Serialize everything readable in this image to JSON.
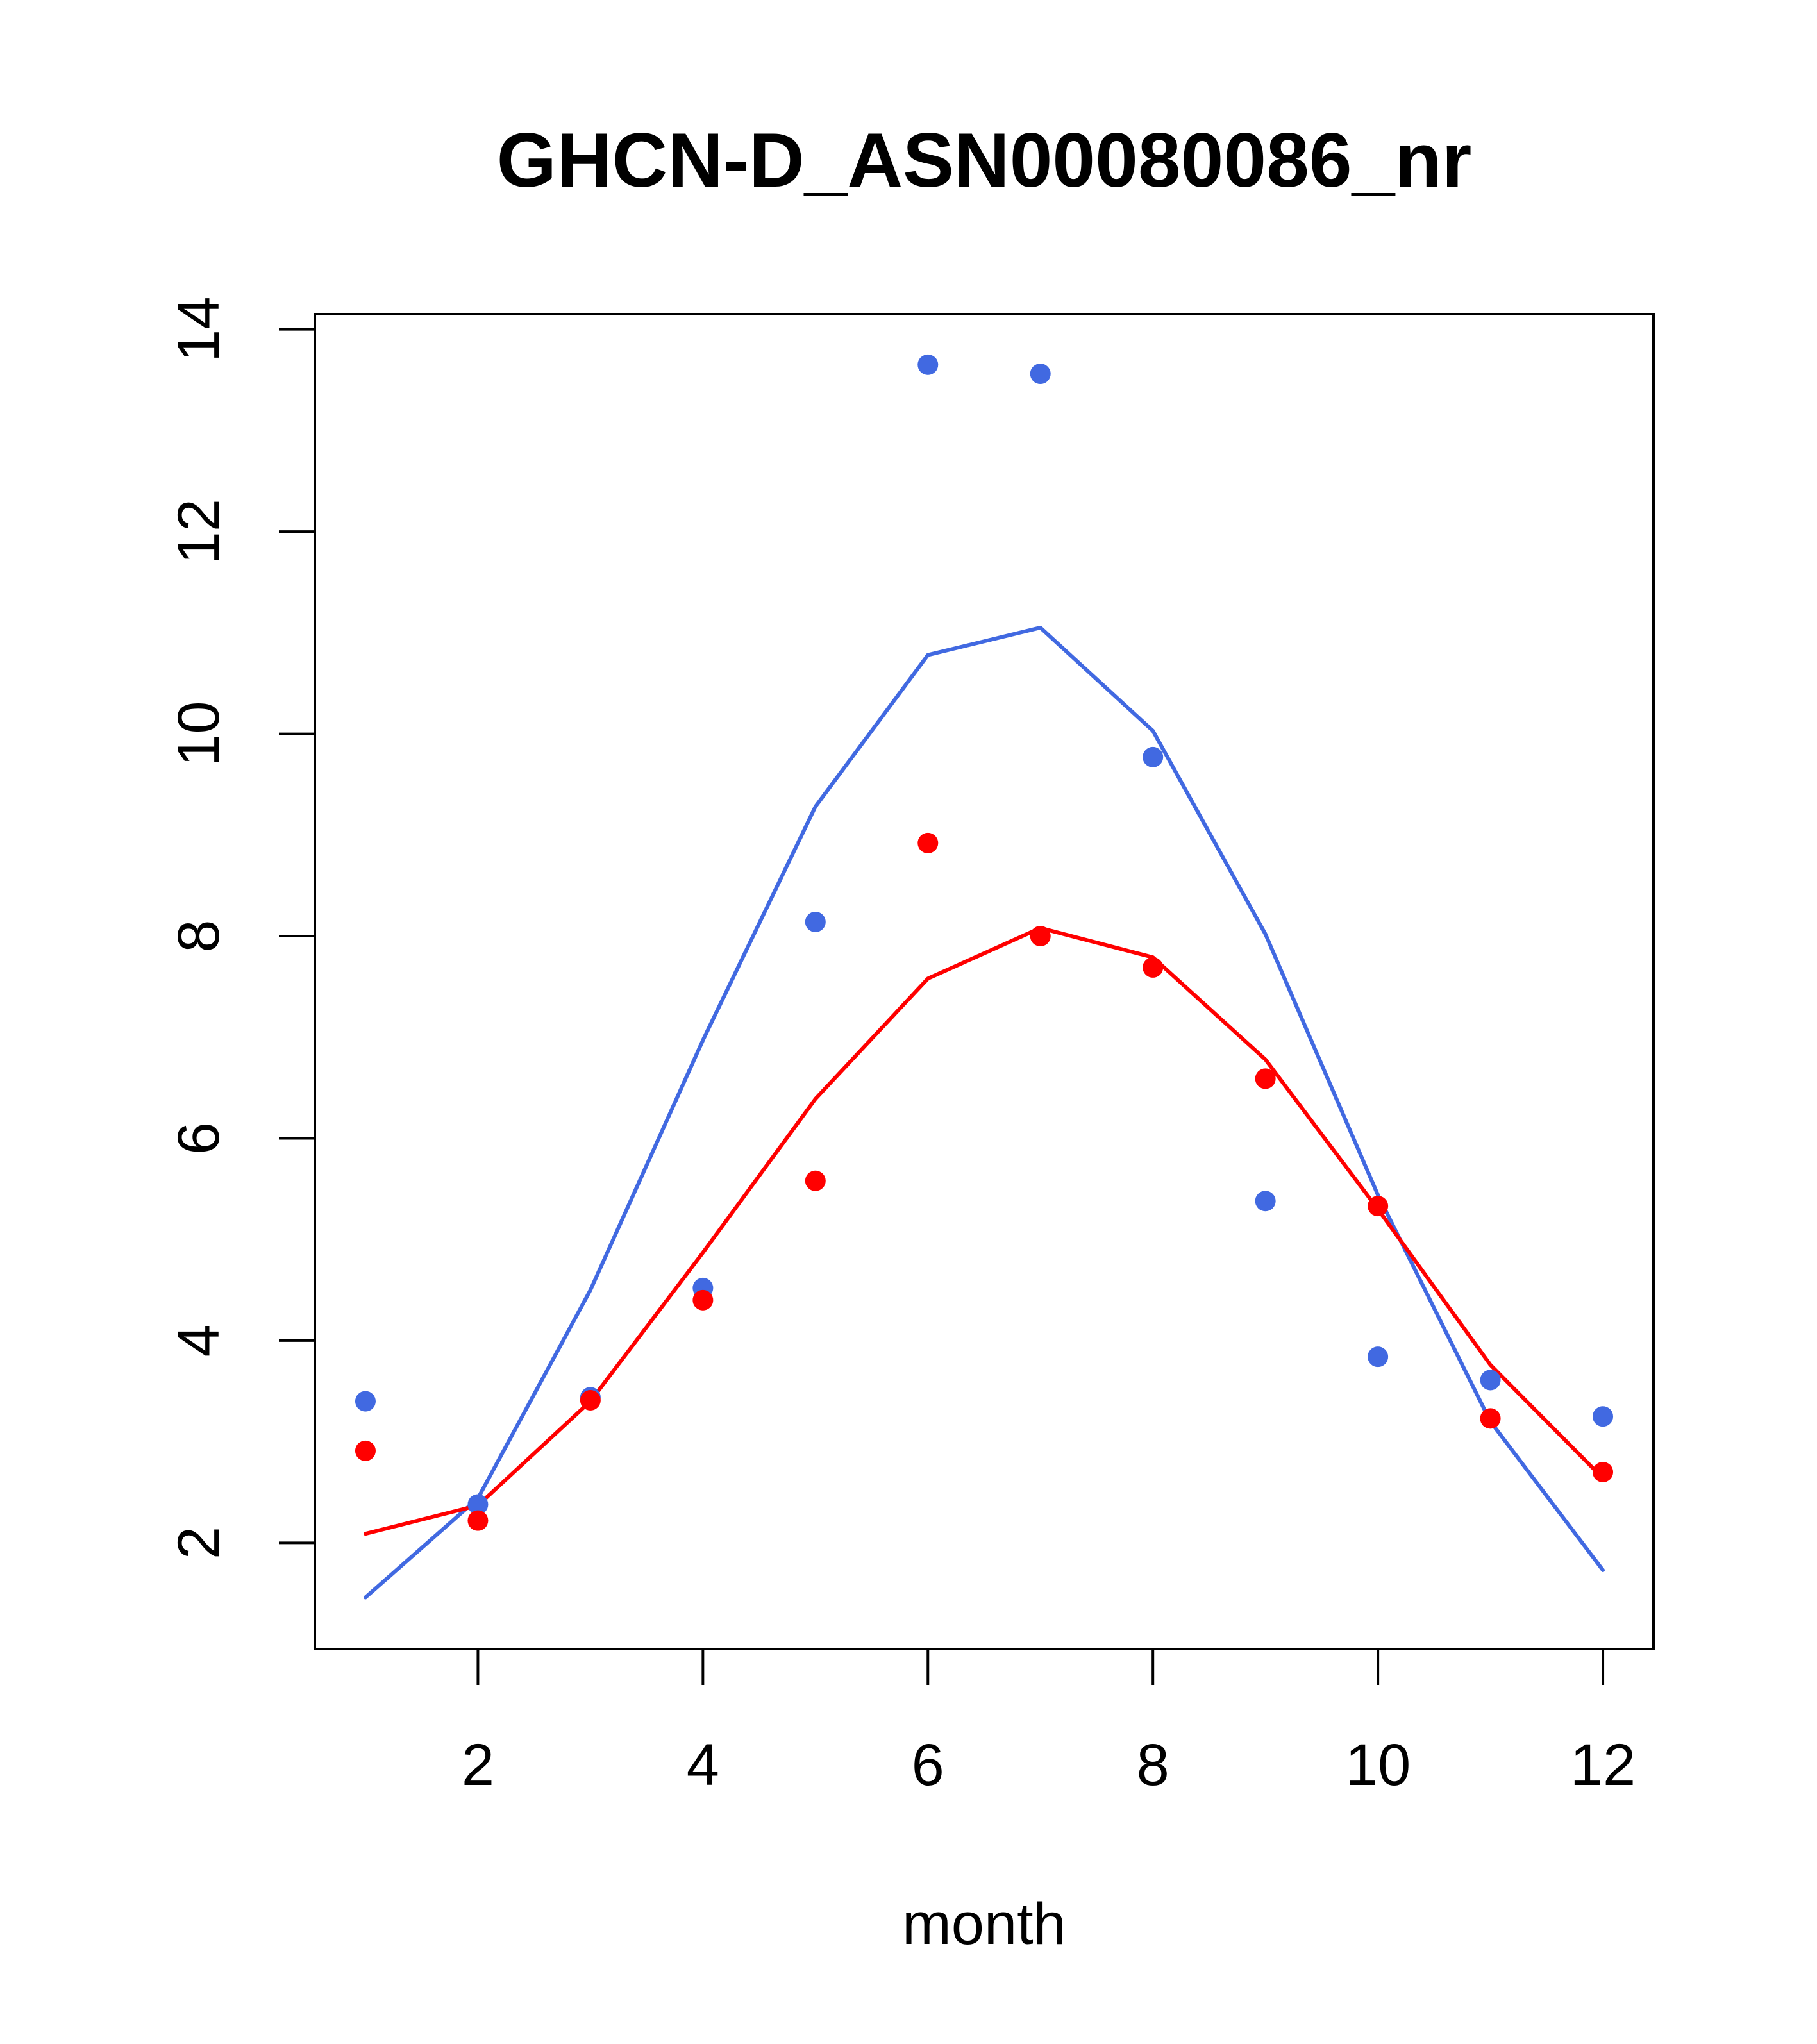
{
  "chart_data": {
    "type": "scatter",
    "title": "GHCN-D_ASN00080086_nr",
    "xlabel": "month",
    "ylabel": "",
    "xlim": [
      0.55,
      12.45
    ],
    "ylim": [
      0.95,
      14.15
    ],
    "xticks": [
      2,
      4,
      6,
      8,
      10,
      12
    ],
    "yticks": [
      2,
      4,
      6,
      8,
      10,
      12,
      14
    ],
    "grid": false,
    "colors": {
      "blue": "#4169E1",
      "red": "#FF0000",
      "axis": "#000000"
    },
    "series": [
      {
        "color": "blue",
        "points": [
          [
            1,
            3.4
          ],
          [
            2,
            2.38
          ],
          [
            3,
            3.44
          ],
          [
            4,
            4.52
          ],
          [
            5,
            8.14
          ],
          [
            6,
            13.65
          ],
          [
            7,
            13.56
          ],
          [
            8,
            9.77
          ],
          [
            9,
            5.38
          ],
          [
            10,
            3.84
          ],
          [
            11,
            3.61
          ],
          [
            12,
            3.25
          ]
        ],
        "line": [
          [
            1,
            1.46
          ],
          [
            2,
            2.44
          ],
          [
            3,
            4.5
          ],
          [
            4,
            6.97
          ],
          [
            5,
            9.28
          ],
          [
            6,
            10.78
          ],
          [
            7,
            11.05
          ],
          [
            8,
            10.03
          ],
          [
            9,
            8.02
          ],
          [
            10,
            5.44
          ],
          [
            11,
            3.2
          ],
          [
            12,
            1.73
          ]
        ]
      },
      {
        "color": "red",
        "points": [
          [
            1,
            2.91
          ],
          [
            2,
            2.22
          ],
          [
            3,
            3.41
          ],
          [
            4,
            4.4
          ],
          [
            5,
            5.58
          ],
          [
            6,
            8.92
          ],
          [
            7,
            8.0
          ],
          [
            8,
            7.69
          ],
          [
            9,
            6.59
          ],
          [
            10,
            5.33
          ],
          [
            11,
            3.23
          ],
          [
            12,
            2.7
          ]
        ],
        "line": [
          [
            1,
            2.09
          ],
          [
            2,
            2.37
          ],
          [
            3,
            3.4
          ],
          [
            4,
            4.87
          ],
          [
            5,
            6.39
          ],
          [
            6,
            7.58
          ],
          [
            7,
            8.08
          ],
          [
            8,
            7.79
          ],
          [
            9,
            6.78
          ],
          [
            10,
            5.3
          ],
          [
            11,
            3.76
          ],
          [
            12,
            2.64
          ]
        ]
      }
    ]
  }
}
